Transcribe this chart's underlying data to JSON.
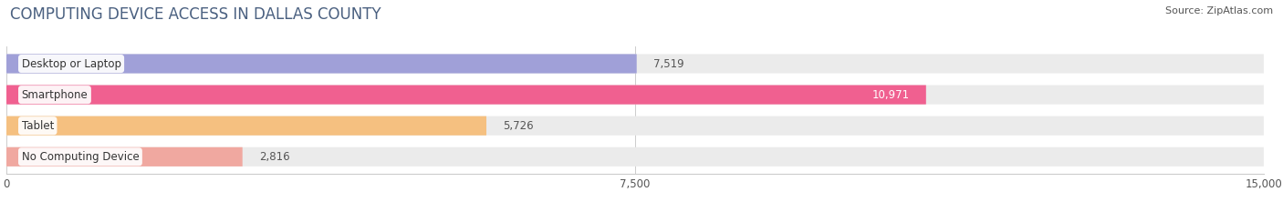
{
  "title": "COMPUTING DEVICE ACCESS IN DALLAS COUNTY",
  "source": "Source: ZipAtlas.com",
  "categories": [
    "Desktop or Laptop",
    "Smartphone",
    "Tablet",
    "No Computing Device"
  ],
  "values": [
    7519,
    10971,
    5726,
    2816
  ],
  "bar_colors": [
    "#a0a0d8",
    "#f06090",
    "#f5c080",
    "#f0a8a0"
  ],
  "xlim": [
    0,
    15000
  ],
  "xticks": [
    0,
    7500,
    15000
  ],
  "xtick_labels": [
    "0",
    "7,500",
    "15,000"
  ],
  "background_color": "#ffffff",
  "bar_bg_color": "#ebebeb",
  "title_fontsize": 12,
  "source_fontsize": 8,
  "label_fontsize": 8.5,
  "value_fontsize": 8.5,
  "title_color": "#4a6080"
}
